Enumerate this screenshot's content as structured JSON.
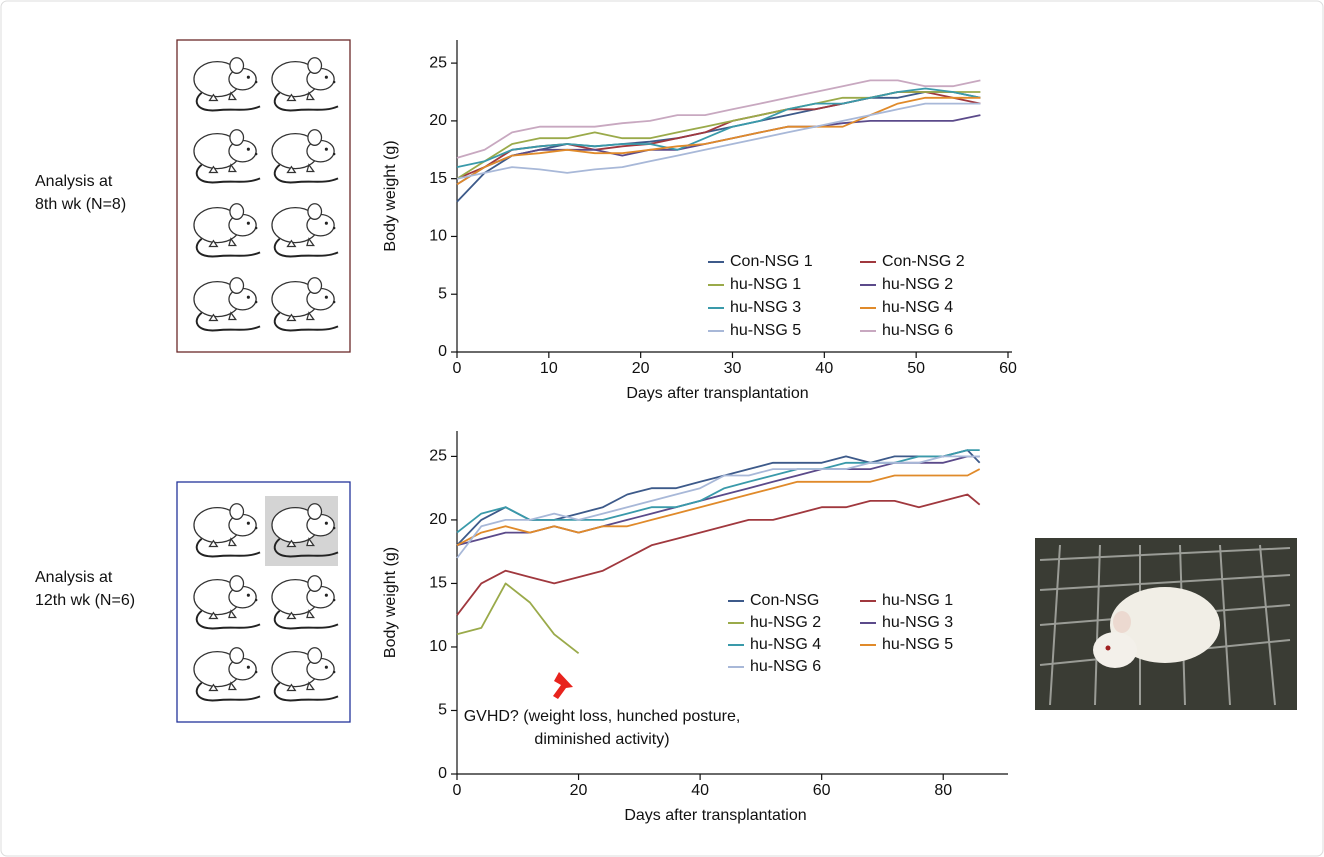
{
  "chart_data": [
    {
      "type": "line",
      "side_label": [
        "Analysis at",
        "8th wk (N=8)"
      ],
      "x_label": "Days after transplantation",
      "y_label": "Body weight (g)",
      "xlim": [
        0,
        60
      ],
      "ylim": [
        0,
        27
      ],
      "xticks": [
        0,
        10,
        20,
        30,
        40,
        50,
        60
      ],
      "yticks": [
        0,
        5,
        10,
        15,
        20,
        25
      ],
      "x": [
        0,
        3,
        6,
        9,
        12,
        15,
        18,
        21,
        24,
        27,
        30,
        33,
        36,
        39,
        42,
        45,
        48,
        51,
        54,
        57
      ],
      "series": [
        {
          "name": "Con-NSG 1",
          "color": "#3d5a8a",
          "values": [
            13,
            15.5,
            17,
            17.5,
            18,
            17.8,
            18,
            18.2,
            18.5,
            19,
            19.5,
            20,
            20.5,
            21,
            21.5,
            22,
            22,
            22.5,
            22.5,
            22
          ]
        },
        {
          "name": "Con-NSG 2",
          "color": "#a0383e",
          "values": [
            15,
            16,
            17.5,
            17.8,
            18,
            17.5,
            17.8,
            18,
            18.5,
            19,
            20,
            20.5,
            21,
            21,
            21.5,
            22,
            22.5,
            22.5,
            22,
            21.5
          ]
        },
        {
          "name": "hu-NSG 1",
          "color": "#9aaa4a",
          "values": [
            15,
            16.5,
            18,
            18.5,
            18.5,
            19,
            18.5,
            18.5,
            19,
            19.5,
            20,
            20.5,
            21,
            21.5,
            22,
            22,
            22.5,
            22.5,
            22.5,
            22.5
          ]
        },
        {
          "name": "hu-NSG 2",
          "color": "#5b4a8a",
          "values": [
            14.5,
            16,
            17,
            17.5,
            17.5,
            17.5,
            17,
            17.5,
            17.5,
            18,
            18.5,
            19,
            19.5,
            19.5,
            19.8,
            20,
            20,
            20,
            20,
            20.5
          ]
        },
        {
          "name": "hu-NSG 3",
          "color": "#3a9aaa",
          "values": [
            16,
            16.5,
            17.5,
            17.8,
            18,
            17.8,
            18,
            18,
            17.5,
            18.5,
            19.5,
            20,
            21,
            21.5,
            21.5,
            22,
            22.5,
            22.8,
            22.5,
            22
          ]
        },
        {
          "name": "hu-NSG 4",
          "color": "#e08a2a",
          "values": [
            14.5,
            16,
            17,
            17.2,
            17.5,
            17.2,
            17.2,
            17.5,
            17.8,
            18,
            18.5,
            19,
            19.5,
            19.5,
            19.5,
            20.5,
            21.5,
            22,
            22,
            22
          ]
        },
        {
          "name": "hu-NSG 5",
          "color": "#a8b8d8",
          "values": [
            15,
            15.5,
            16,
            15.8,
            15.5,
            15.8,
            16,
            16.5,
            17,
            17.5,
            18,
            18.5,
            19,
            19.5,
            20,
            20.5,
            21,
            21.5,
            21.5,
            21.5
          ]
        },
        {
          "name": "hu-NSG 6",
          "color": "#c8a8c0",
          "values": [
            16.8,
            17.5,
            19,
            19.5,
            19.5,
            19.5,
            19.8,
            20,
            20.5,
            20.5,
            21,
            21.5,
            22,
            22.5,
            23,
            23.5,
            23.5,
            23,
            23,
            23.5
          ]
        }
      ]
    },
    {
      "type": "line",
      "side_label": [
        "Analysis at",
        "12th wk (N=6)"
      ],
      "x_label": "Days after transplantation",
      "y_label": "Body weight (g)",
      "annotation": [
        "GVHD? (weight loss, hunched posture,",
        "diminished activity)"
      ],
      "xlim": [
        0,
        90
      ],
      "ylim": [
        0,
        27
      ],
      "xticks": [
        0,
        20,
        40,
        60,
        80
      ],
      "yticks": [
        0,
        5,
        10,
        15,
        20,
        25
      ],
      "x": [
        0,
        4,
        8,
        12,
        16,
        20,
        24,
        28,
        32,
        36,
        40,
        44,
        48,
        52,
        56,
        60,
        64,
        68,
        72,
        76,
        80,
        84,
        86
      ],
      "series": [
        {
          "name": "Con-NSG",
          "color": "#3d5a8a",
          "values": [
            18,
            20,
            21,
            20,
            20,
            20.5,
            21,
            22,
            22.5,
            22.5,
            23,
            23.5,
            24,
            24.5,
            24.5,
            24.5,
            25,
            24.5,
            25,
            25,
            25,
            25.5,
            24.5
          ]
        },
        {
          "name": "hu-NSG 1",
          "color": "#a0383e",
          "values": [
            12.5,
            15,
            16,
            15.5,
            15,
            15.5,
            16,
            17,
            18,
            18.5,
            19,
            19.5,
            20,
            20,
            20.5,
            21,
            21,
            21.5,
            21.5,
            21,
            21.5,
            22,
            21.2
          ]
        },
        {
          "name": "hu-NSG 2",
          "color": "#9aaa4a",
          "values": [
            11,
            11.5,
            15,
            13.5,
            11,
            9.5,
            null,
            null,
            null,
            null,
            null,
            null,
            null,
            null,
            null,
            null,
            null,
            null,
            null,
            null,
            null,
            null,
            null
          ]
        },
        {
          "name": "hu-NSG 3",
          "color": "#5b4a8a",
          "values": [
            18,
            18.5,
            19,
            19,
            19.5,
            19,
            19.5,
            20,
            20.5,
            21,
            21.5,
            22,
            22.5,
            23,
            23.5,
            24,
            24,
            24,
            24.5,
            24.5,
            24.5,
            25,
            25
          ]
        },
        {
          "name": "hu-NSG 4",
          "color": "#3a9aaa",
          "values": [
            19,
            20.5,
            21,
            20,
            20,
            20,
            20,
            20.5,
            21,
            21,
            21.5,
            22.5,
            23,
            23.5,
            24,
            24,
            24.5,
            24.5,
            24.5,
            25,
            25,
            25.5,
            25.5
          ]
        },
        {
          "name": "hu-NSG 5",
          "color": "#e08a2a",
          "values": [
            18,
            19,
            19.5,
            19,
            19.5,
            19,
            19.5,
            19.5,
            20,
            20.5,
            21,
            21.5,
            22,
            22.5,
            23,
            23,
            23,
            23,
            23.5,
            23.5,
            23.5,
            23.5,
            24
          ]
        },
        {
          "name": "hu-NSG 6",
          "color": "#a8b8d8",
          "values": [
            17,
            19.5,
            20,
            20,
            20.5,
            20,
            20.5,
            21,
            21.5,
            22,
            22.5,
            23.5,
            23.5,
            24,
            24,
            24,
            24,
            24.5,
            24.5,
            24.5,
            25,
            25,
            25
          ]
        }
      ]
    }
  ]
}
